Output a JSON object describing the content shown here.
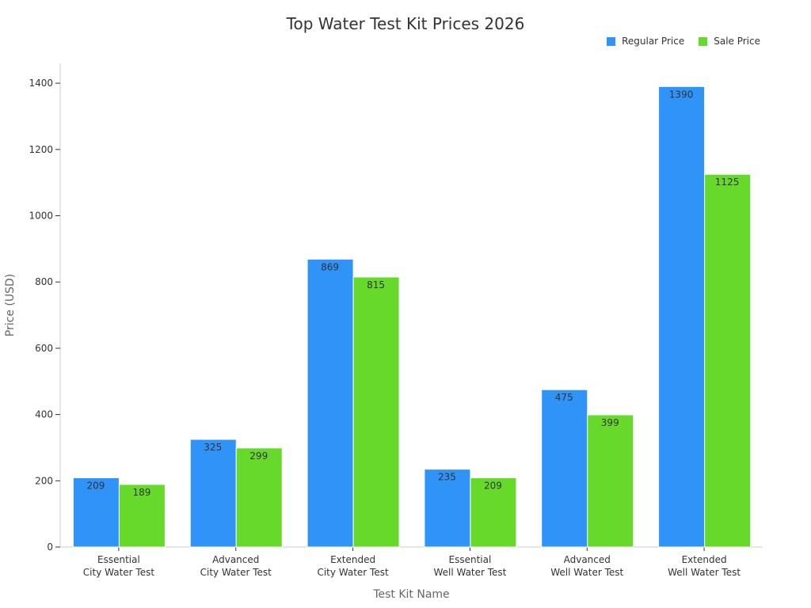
{
  "chart_data": {
    "type": "bar",
    "title": "Top Water Test Kit Prices 2026",
    "xlabel": "Test Kit Name",
    "ylabel": "Price (USD)",
    "ylim": [
      0,
      1460
    ],
    "yticks": [
      0,
      200,
      400,
      600,
      800,
      1000,
      1200,
      1400
    ],
    "grid": false,
    "legend_position": "top-right",
    "categories": [
      [
        "Essential",
        "City Water Test"
      ],
      [
        "Advanced",
        "City Water Test"
      ],
      [
        "Extended",
        "City Water Test"
      ],
      [
        "Essential",
        "Well Water Test"
      ],
      [
        "Advanced",
        "Well Water Test"
      ],
      [
        "Extended",
        "Well Water Test"
      ]
    ],
    "series": [
      {
        "name": "Regular Price",
        "color": "#2f93f7",
        "values": [
          209,
          325,
          869,
          235,
          475,
          1390
        ]
      },
      {
        "name": "Sale Price",
        "color": "#66d92b",
        "values": [
          189,
          299,
          815,
          209,
          399,
          1125
        ]
      }
    ]
  }
}
